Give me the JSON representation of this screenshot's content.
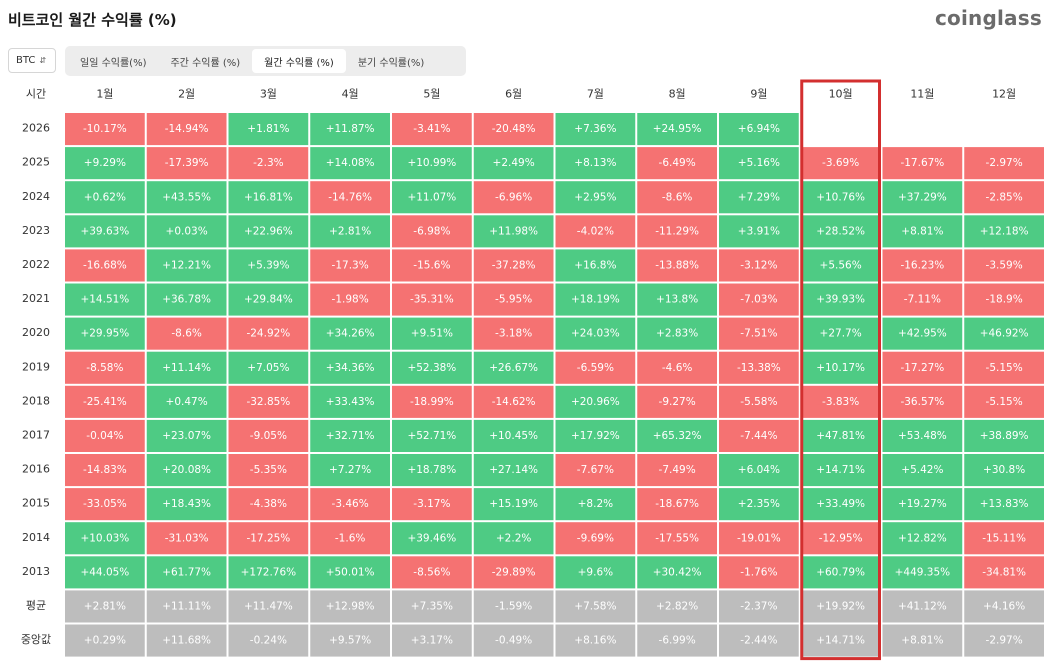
{
  "header": {
    "title": "비트코인 월간 수익률 (%)",
    "brand": "coinglass"
  },
  "controls": {
    "asset": "BTC",
    "tabs": [
      {
        "label": "일일 수익률(%)",
        "active": false
      },
      {
        "label": "주간 수익률 (%)",
        "active": false
      },
      {
        "label": "월간 수익률 (%)",
        "active": true
      },
      {
        "label": "분기 수익률(%)",
        "active": false
      }
    ]
  },
  "colors": {
    "positive": "#4ecb84",
    "negative": "#f57272",
    "summary": "#bdbdbd",
    "highlight": "#d32f2f"
  },
  "chart_data": {
    "type": "table",
    "title": "비트코인 월간 수익률 (%)",
    "row_header_label": "시간",
    "columns": [
      "1월",
      "2월",
      "3월",
      "4월",
      "5월",
      "6월",
      "7월",
      "8월",
      "9월",
      "10월",
      "11월",
      "12월"
    ],
    "highlight_column": "10월",
    "rows": [
      {
        "year": "2026",
        "values": [
          "-10.17%",
          "-14.94%",
          "+1.81%",
          "+11.87%",
          "-3.41%",
          "-20.48%",
          "+7.36%",
          "+24.95%",
          "+6.94%",
          "",
          "",
          ""
        ]
      },
      {
        "year": "2025",
        "values": [
          "+9.29%",
          "-17.39%",
          "-2.3%",
          "+14.08%",
          "+10.99%",
          "+2.49%",
          "+8.13%",
          "-6.49%",
          "+5.16%",
          "-3.69%",
          "-17.67%",
          "-2.97%"
        ]
      },
      {
        "year": "2024",
        "values": [
          "+0.62%",
          "+43.55%",
          "+16.81%",
          "-14.76%",
          "+11.07%",
          "-6.96%",
          "+2.95%",
          "-8.6%",
          "+7.29%",
          "+10.76%",
          "+37.29%",
          "-2.85%"
        ]
      },
      {
        "year": "2023",
        "values": [
          "+39.63%",
          "+0.03%",
          "+22.96%",
          "+2.81%",
          "-6.98%",
          "+11.98%",
          "-4.02%",
          "-11.29%",
          "+3.91%",
          "+28.52%",
          "+8.81%",
          "+12.18%"
        ]
      },
      {
        "year": "2022",
        "values": [
          "-16.68%",
          "+12.21%",
          "+5.39%",
          "-17.3%",
          "-15.6%",
          "-37.28%",
          "+16.8%",
          "-13.88%",
          "-3.12%",
          "+5.56%",
          "-16.23%",
          "-3.59%"
        ]
      },
      {
        "year": "2021",
        "values": [
          "+14.51%",
          "+36.78%",
          "+29.84%",
          "-1.98%",
          "-35.31%",
          "-5.95%",
          "+18.19%",
          "+13.8%",
          "-7.03%",
          "+39.93%",
          "-7.11%",
          "-18.9%"
        ]
      },
      {
        "year": "2020",
        "values": [
          "+29.95%",
          "-8.6%",
          "-24.92%",
          "+34.26%",
          "+9.51%",
          "-3.18%",
          "+24.03%",
          "+2.83%",
          "-7.51%",
          "+27.7%",
          "+42.95%",
          "+46.92%"
        ]
      },
      {
        "year": "2019",
        "values": [
          "-8.58%",
          "+11.14%",
          "+7.05%",
          "+34.36%",
          "+52.38%",
          "+26.67%",
          "-6.59%",
          "-4.6%",
          "-13.38%",
          "+10.17%",
          "-17.27%",
          "-5.15%"
        ]
      },
      {
        "year": "2018",
        "values": [
          "-25.41%",
          "+0.47%",
          "-32.85%",
          "+33.43%",
          "-18.99%",
          "-14.62%",
          "+20.96%",
          "-9.27%",
          "-5.58%",
          "-3.83%",
          "-36.57%",
          "-5.15%"
        ]
      },
      {
        "year": "2017",
        "values": [
          "-0.04%",
          "+23.07%",
          "-9.05%",
          "+32.71%",
          "+52.71%",
          "+10.45%",
          "+17.92%",
          "+65.32%",
          "-7.44%",
          "+47.81%",
          "+53.48%",
          "+38.89%"
        ]
      },
      {
        "year": "2016",
        "values": [
          "-14.83%",
          "+20.08%",
          "-5.35%",
          "+7.27%",
          "+18.78%",
          "+27.14%",
          "-7.67%",
          "-7.49%",
          "+6.04%",
          "+14.71%",
          "+5.42%",
          "+30.8%"
        ]
      },
      {
        "year": "2015",
        "values": [
          "-33.05%",
          "+18.43%",
          "-4.38%",
          "-3.46%",
          "-3.17%",
          "+15.19%",
          "+8.2%",
          "-18.67%",
          "+2.35%",
          "+33.49%",
          "+19.27%",
          "+13.83%"
        ]
      },
      {
        "year": "2014",
        "values": [
          "+10.03%",
          "-31.03%",
          "-17.25%",
          "-1.6%",
          "+39.46%",
          "+2.2%",
          "-9.69%",
          "-17.55%",
          "-19.01%",
          "-12.95%",
          "+12.82%",
          "-15.11%"
        ]
      },
      {
        "year": "2013",
        "values": [
          "+44.05%",
          "+61.77%",
          "+172.76%",
          "+50.01%",
          "-8.56%",
          "-29.89%",
          "+9.6%",
          "+30.42%",
          "-1.76%",
          "+60.79%",
          "+449.35%",
          "-34.81%"
        ]
      }
    ],
    "summary_rows": [
      {
        "label": "평균",
        "values": [
          "+2.81%",
          "+11.11%",
          "+11.47%",
          "+12.98%",
          "+7.35%",
          "-1.59%",
          "+7.58%",
          "+2.82%",
          "-2.37%",
          "+19.92%",
          "+41.12%",
          "+4.16%"
        ]
      },
      {
        "label": "중앙값",
        "values": [
          "+0.29%",
          "+11.68%",
          "-0.24%",
          "+9.57%",
          "+3.17%",
          "-0.49%",
          "+8.16%",
          "-6.99%",
          "-2.44%",
          "+14.71%",
          "+8.81%",
          "-2.97%"
        ]
      }
    ]
  }
}
